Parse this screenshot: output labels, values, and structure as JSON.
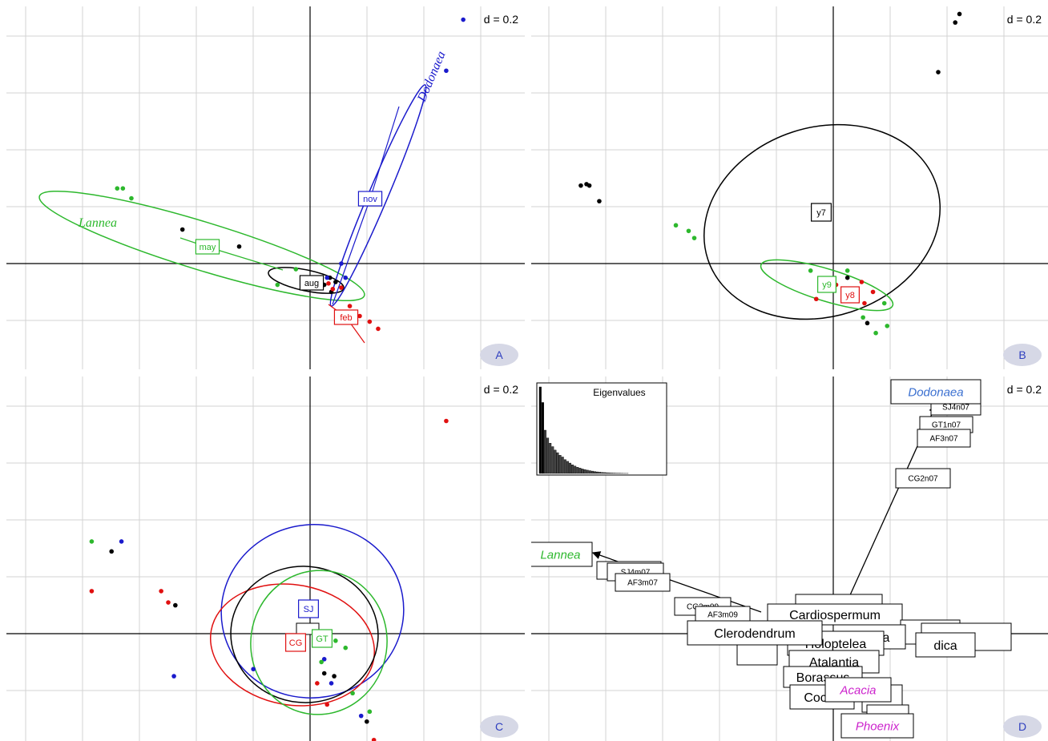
{
  "figure": {
    "panels": [
      {
        "id": "A",
        "scale_label": "d = 0.2",
        "panel_letter": "A",
        "groups": [
          {
            "label": "may",
            "color": "#2db82d"
          },
          {
            "label": "aug",
            "color": "#000000"
          },
          {
            "label": "feb",
            "color": "#e01010"
          },
          {
            "label": "nov",
            "color": "#1a1acc"
          }
        ],
        "annotations": [
          {
            "text": "Lannea",
            "color": "#2db82d"
          },
          {
            "text": "Dodonaea",
            "color": "#1a1acc"
          }
        ]
      },
      {
        "id": "B",
        "scale_label": "d = 0.2",
        "panel_letter": "B",
        "groups": [
          {
            "label": "y7",
            "color": "#000000"
          },
          {
            "label": "y9",
            "color": "#2db82d"
          },
          {
            "label": "y8",
            "color": "#e01010"
          }
        ]
      },
      {
        "id": "C",
        "scale_label": "d = 0.2",
        "panel_letter": "C",
        "groups": [
          {
            "label": "SJ",
            "color": "#1a1acc"
          },
          {
            "label": "CG",
            "color": "#e01010"
          },
          {
            "label": "GT",
            "color": "#2db82d"
          }
        ]
      },
      {
        "id": "D",
        "scale_label": "d = 0.2",
        "panel_letter": "D",
        "inset_title": "Eigenvalues",
        "species_labels": [
          {
            "text": "Dodonaea",
            "color": "#3a6fd0"
          },
          {
            "text": "Lannea",
            "color": "#2db82d"
          },
          {
            "text": "Acacia",
            "color": "#cc22cc"
          },
          {
            "text": "Phoenix",
            "color": "#cc22cc"
          },
          {
            "text": "Cardiospermum",
            "color": "#000000"
          },
          {
            "text": "Clerodendrum",
            "color": "#000000"
          },
          {
            "text": "Holoptelea",
            "color": "#000000"
          },
          {
            "text": "Grewia",
            "color": "#000000"
          },
          {
            "text": "Atalantia",
            "color": "#000000"
          },
          {
            "text": "Borassus",
            "color": "#000000"
          },
          {
            "text": "Cocos",
            "color": "#000000"
          },
          {
            "text": "dica",
            "color": "#000000"
          },
          {
            "text": "um",
            "color": "#000000"
          },
          {
            "text": "is",
            "color": "#000000"
          }
        ],
        "sample_labels": [
          "SJ4n07",
          "GT1n07",
          "AF3n07",
          "CG2n07",
          "SJ4m07",
          "AF3m07",
          "AF3m09",
          "CG2m09"
        ]
      }
    ]
  },
  "chart_data": [
    {
      "type": "scatter",
      "panel": "A",
      "title": "d = 0.2",
      "grid": true,
      "groups": [
        {
          "name": "may",
          "color": "#2db82d",
          "points": [
            [
              -1.36,
              0.53
            ],
            [
              -1.32,
              0.53
            ],
            [
              -1.26,
              0.46
            ],
            [
              -0.23,
              -0.15
            ],
            [
              -0.1,
              -0.04
            ]
          ]
        },
        {
          "name": "aug",
          "color": "#000000",
          "points": [
            [
              -0.9,
              0.24
            ],
            [
              -0.5,
              0.12
            ],
            [
              0.05,
              -0.12
            ],
            [
              0.1,
              -0.15
            ],
            [
              0.14,
              -0.1
            ],
            [
              0.18,
              -0.13
            ],
            [
              0.15,
              -0.2
            ]
          ]
        },
        {
          "name": "feb",
          "color": "#e01010",
          "points": [
            [
              0.13,
              -0.14
            ],
            [
              0.16,
              -0.18
            ],
            [
              0.22,
              -0.17
            ],
            [
              0.28,
              -0.3
            ],
            [
              0.35,
              -0.37
            ],
            [
              0.42,
              -0.41
            ],
            [
              0.48,
              -0.46
            ]
          ]
        },
        {
          "name": "nov",
          "color": "#1a1acc",
          "points": [
            [
              0.08,
              -0.12
            ],
            [
              0.12,
              -0.1
            ],
            [
              0.22,
              0.0
            ],
            [
              0.25,
              -0.1
            ],
            [
              0.96,
              1.36
            ],
            [
              1.08,
              1.72
            ],
            [
              1.15,
              1.86
            ],
            [
              1.22,
              1.98
            ]
          ]
        }
      ],
      "centroids": [
        {
          "name": "may",
          "x": -0.74,
          "y": 0.15
        },
        {
          "name": "aug",
          "x": 0.0,
          "y": -0.05
        },
        {
          "name": "feb",
          "x": 0.25,
          "y": -0.28
        },
        {
          "name": "nov",
          "x": 0.58,
          "y": 0.55
        }
      ]
    },
    {
      "type": "scatter",
      "panel": "B",
      "title": "d = 0.2",
      "grid": true,
      "groups": [
        {
          "name": "y7",
          "color": "#000000",
          "points": [
            [
              -1.78,
              0.55
            ],
            [
              -1.74,
              0.56
            ],
            [
              -1.72,
              0.55
            ],
            [
              -1.65,
              0.44
            ],
            [
              0.74,
              1.35
            ],
            [
              0.86,
              1.7
            ],
            [
              0.89,
              1.76
            ],
            [
              0.96,
              1.92
            ],
            [
              0.1,
              -0.1
            ],
            [
              0.15,
              -0.22
            ],
            [
              0.24,
              -0.42
            ]
          ]
        },
        {
          "name": "y9",
          "color": "#2db82d",
          "points": [
            [
              -1.11,
              0.27
            ],
            [
              -1.02,
              0.23
            ],
            [
              -0.98,
              0.18
            ],
            [
              -0.16,
              -0.05
            ],
            [
              0.1,
              -0.05
            ],
            [
              0.21,
              -0.38
            ],
            [
              0.3,
              -0.49
            ],
            [
              0.38,
              -0.44
            ],
            [
              0.36,
              -0.28
            ]
          ]
        },
        {
          "name": "y8",
          "color": "#e01010",
          "points": [
            [
              -0.12,
              -0.25
            ],
            [
              0.02,
              -0.15
            ],
            [
              0.12,
              -0.22
            ],
            [
              0.2,
              -0.13
            ],
            [
              0.28,
              -0.2
            ],
            [
              0.22,
              -0.28
            ]
          ]
        }
      ],
      "centroids": [
        {
          "name": "y7",
          "x": -0.08,
          "y": 0.5
        },
        {
          "name": "y9",
          "x": -0.05,
          "y": -0.12
        },
        {
          "name": "y8",
          "x": 0.12,
          "y": -0.2
        }
      ]
    },
    {
      "type": "scatter",
      "panel": "C",
      "title": "d = 0.2",
      "grid": true,
      "groups": [
        {
          "name": "SJ",
          "color": "#1a1acc",
          "points": [
            [
              -1.33,
              0.65
            ],
            [
              -0.96,
              -0.3
            ],
            [
              -0.4,
              -0.25
            ],
            [
              0.1,
              -0.18
            ],
            [
              0.15,
              -0.35
            ],
            [
              0.36,
              -0.58
            ],
            [
              1.07,
              2.21
            ]
          ]
        },
        {
          "name": "CG",
          "color": "#e01010",
          "points": [
            [
              -1.54,
              0.3
            ],
            [
              -1.05,
              0.3
            ],
            [
              -1.0,
              0.22
            ],
            [
              0.05,
              -0.35
            ],
            [
              0.12,
              -0.5
            ],
            [
              0.45,
              -0.75
            ],
            [
              0.52,
              -0.85
            ],
            [
              0.96,
              1.5
            ]
          ]
        },
        {
          "name": "GT",
          "color": "#2db82d",
          "points": [
            [
              -1.54,
              0.65
            ],
            [
              0.08,
              -0.2
            ],
            [
              0.18,
              -0.05
            ],
            [
              0.25,
              -0.1
            ],
            [
              0.3,
              -0.42
            ],
            [
              0.42,
              -0.55
            ],
            [
              1.0,
              2.05
            ]
          ]
        },
        {
          "name": "",
          "color": "#000000",
          "points": [
            [
              -1.4,
              0.58
            ],
            [
              -0.95,
              0.2
            ],
            [
              0.1,
              -0.28
            ],
            [
              0.17,
              -0.3
            ],
            [
              0.4,
              -0.62
            ],
            [
              1.02,
              1.95
            ]
          ]
        }
      ],
      "centroids": [
        {
          "name": "SJ",
          "x": 0.0,
          "y": 0.25
        },
        {
          "name": "CG",
          "x": -0.1,
          "y": -0.08
        },
        {
          "name": "GT",
          "x": 0.1,
          "y": -0.08
        }
      ]
    },
    {
      "type": "scatter",
      "panel": "D",
      "title": "d = 0.2",
      "grid": true,
      "arrows": [
        {
          "to": "Dodonaea",
          "x": 1.05,
          "y": 1.75
        },
        {
          "to": "Lannea",
          "x": -1.68,
          "y": 0.55
        },
        {
          "to": "Phoenix",
          "x": 0.3,
          "y": -0.8
        }
      ],
      "inset": {
        "type": "bar",
        "title": "Eigenvalues",
        "values": [
          1.0,
          0.82,
          0.5,
          0.41,
          0.35,
          0.31,
          0.27,
          0.24,
          0.21,
          0.19,
          0.16,
          0.14,
          0.12,
          0.1,
          0.085,
          0.072,
          0.062,
          0.052,
          0.045,
          0.038,
          0.032,
          0.027,
          0.022,
          0.018,
          0.015,
          0.012,
          0.01,
          0.008,
          0.006,
          0.005,
          0.004,
          0.003,
          0.002,
          0.0015,
          0.001,
          0.0008
        ]
      }
    }
  ]
}
